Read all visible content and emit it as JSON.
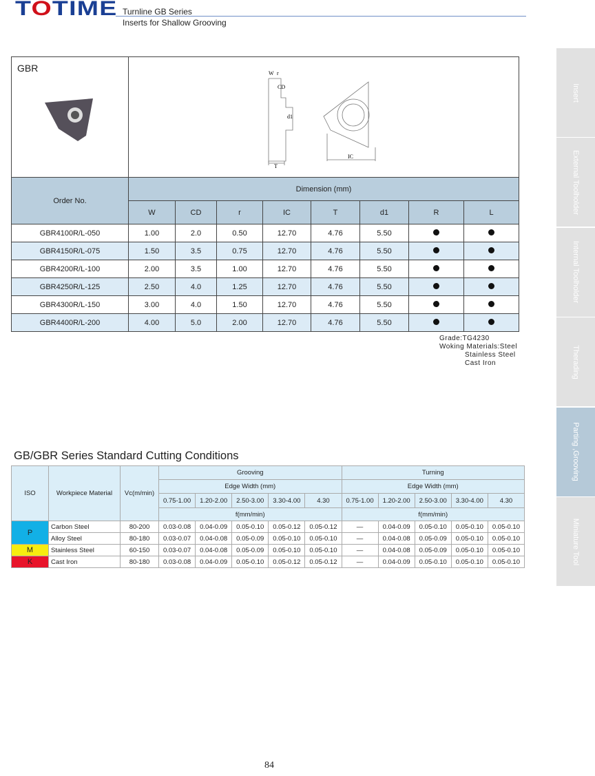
{
  "header": {
    "logo": "TOTIME",
    "series": "Turnline GB Series",
    "subtitle": "Inserts  for  Shallow  Grooving"
  },
  "side_tabs": [
    {
      "label": "Insert",
      "active": false
    },
    {
      "label": "External Toolholder",
      "active": false
    },
    {
      "label": "Internal Toolholder",
      "active": false
    },
    {
      "label": "Therading",
      "active": false
    },
    {
      "label": "Parting ,Grooving",
      "active": true
    },
    {
      "label": "Miniature Tool",
      "active": false
    }
  ],
  "product": {
    "name": "GBR",
    "drawing_labels": {
      "w": "W",
      "r": "r",
      "cd": "CD",
      "d1": "d1",
      "t": "T",
      "ic": "IC"
    }
  },
  "spec_table": {
    "order_header": "Order No.",
    "dim_header": "Dimension (mm)",
    "columns": [
      "W",
      "CD",
      "r",
      "IC",
      "T",
      "d1",
      "R",
      "L"
    ],
    "rows": [
      {
        "order": "GBR4100R/L-050",
        "values": [
          "1.00",
          "2.0",
          "0.50",
          "12.70",
          "4.76",
          "5.50"
        ],
        "R": true,
        "L": true
      },
      {
        "order": "GBR4150R/L-075",
        "values": [
          "1.50",
          "3.5",
          "0.75",
          "12.70",
          "4.76",
          "5.50"
        ],
        "R": true,
        "L": true
      },
      {
        "order": "GBR4200R/L-100",
        "values": [
          "2.00",
          "3.5",
          "1.00",
          "12.70",
          "4.76",
          "5.50"
        ],
        "R": true,
        "L": true
      },
      {
        "order": "GBR4250R/L-125",
        "values": [
          "2.50",
          "4.0",
          "1.25",
          "12.70",
          "4.76",
          "5.50"
        ],
        "R": true,
        "L": true
      },
      {
        "order": "GBR4300R/L-150",
        "values": [
          "3.00",
          "4.0",
          "1.50",
          "12.70",
          "4.76",
          "5.50"
        ],
        "R": true,
        "L": true
      },
      {
        "order": "GBR4400R/L-200",
        "values": [
          "4.00",
          "5.0",
          "2.00",
          "12.70",
          "4.76",
          "5.50"
        ],
        "R": true,
        "L": true
      }
    ]
  },
  "notes": {
    "grade": "Grade:TG4230",
    "materials": "Woking Materials:Steel",
    "m2": "Stainless Steel",
    "m3": "Cast Iron"
  },
  "conditions": {
    "title": "GB/GBR Series Standard Cutting Conditions",
    "iso": "ISO",
    "material": "Workpiece Material",
    "vc": "Vc(m/min)",
    "grooving": "Grooving",
    "turning": "Turning",
    "edge_width": "Edge Width  (mm)",
    "feed": "f(mm/min)",
    "widths": [
      "0.75-1.00",
      "1.20-2.00",
      "2.50-3.00",
      "3.30-4.00",
      "4.30"
    ],
    "iso_groups": [
      {
        "code": "P",
        "color": "#12b0e6"
      },
      {
        "code": "M",
        "color": "#f7ec10"
      },
      {
        "code": "K",
        "color": "#e8142a"
      }
    ],
    "rows": [
      {
        "material": "Carbon Steel",
        "vc": "80-200",
        "grooving": [
          "0.03-0.08",
          "0.04-0.09",
          "0.05-0.10",
          "0.05-0.12",
          "0.05-0.12"
        ],
        "turning": [
          "—",
          "0.04-0.09",
          "0.05-0.10",
          "0.05-0.10",
          "0.05-0.10"
        ]
      },
      {
        "material": "Alloy Steel",
        "vc": "80-180",
        "grooving": [
          "0.03-0.07",
          "0.04-0.08",
          "0.05-0.09",
          "0.05-0.10",
          "0.05-0.10"
        ],
        "turning": [
          "—",
          "0.04-0.08",
          "0.05-0.09",
          "0.05-0.10",
          "0.05-0.10"
        ]
      },
      {
        "material": "Stainless Steel",
        "vc": "60-150",
        "grooving": [
          "0.03-0.07",
          "0.04-0.08",
          "0.05-0.09",
          "0.05-0.10",
          "0.05-0.10"
        ],
        "turning": [
          "—",
          "0.04-0.08",
          "0.05-0.09",
          "0.05-0.10",
          "0.05-0.10"
        ]
      },
      {
        "material": "Cast Iron",
        "vc": "80-180",
        "grooving": [
          "0.03-0.08",
          "0.04-0.09",
          "0.05-0.10",
          "0.05-0.12",
          "0.05-0.12"
        ],
        "turning": [
          "—",
          "0.04-0.09",
          "0.05-0.10",
          "0.05-0.10",
          "0.05-0.10"
        ]
      }
    ]
  },
  "page_number": "84"
}
